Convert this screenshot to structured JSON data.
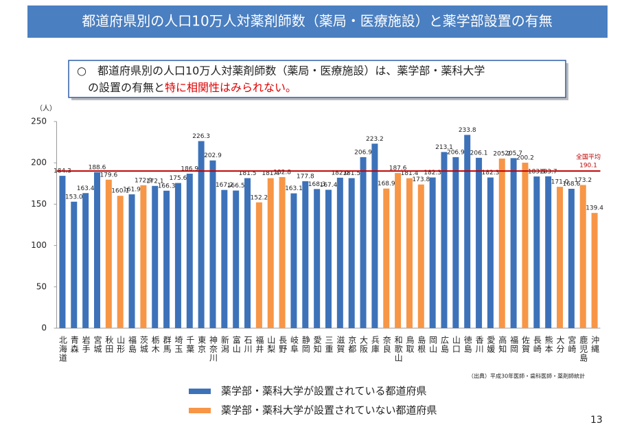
{
  "header": {
    "title": "都道府県別の人口10万人対薬剤師数（薬局・医療施設）と薬学部設置の有無"
  },
  "callout": {
    "line1": "○　都道府県別の人口10万人対薬剤師数（薬局・医療施設）は、薬学部・薬科大学",
    "line2": "の設置の有無と",
    "line2_emphasis": "特に相関性はみられない。"
  },
  "chart_data": {
    "type": "bar",
    "y_label": "（人）",
    "categories": [
      "北海道",
      "青森",
      "岩手",
      "宮城",
      "秋田",
      "山形",
      "福島",
      "茨城",
      "栃木",
      "群馬",
      "埼玉",
      "千葉",
      "東京",
      "神奈川",
      "新潟",
      "富山",
      "石川",
      "福井",
      "山梨",
      "長野",
      "岐阜",
      "静岡",
      "愛知",
      "三重",
      "滋賀",
      "京都",
      "大阪",
      "兵庫",
      "奈良",
      "和歌山",
      "鳥取",
      "島根",
      "岡山",
      "広島",
      "山口",
      "徳島",
      "香川",
      "愛媛",
      "高知",
      "福岡",
      "佐賀",
      "長崎",
      "熊本",
      "大分",
      "宮崎",
      "鹿児島",
      "沖縄"
    ],
    "series": [
      {
        "name": "薬学部・薬科大学が設置されている都道府県",
        "color": "#3d72b9",
        "values": [
          184.3,
          153,
          163.4,
          188.6,
          null,
          null,
          161.9,
          null,
          172.1,
          166.3,
          175.6,
          186.9,
          226.3,
          202.9,
          167.2,
          166.5,
          181.5,
          null,
          null,
          null,
          163.1,
          177.8,
          168.3,
          167.4,
          182,
          181.5,
          206.9,
          223.2,
          null,
          null,
          null,
          null,
          182.3,
          213.1,
          206.9,
          233.8,
          206.1,
          182.3,
          null,
          205.7,
          null,
          183.5,
          183.7,
          null,
          168.6,
          null,
          null
        ],
        "value_labels": [
          "184.3",
          "153.0",
          "163.4",
          "188.6",
          null,
          null,
          "161.9",
          null,
          "172.1",
          "166.3",
          "175.6",
          "186.9",
          "226.3",
          "202.9",
          "167.2",
          "166.5",
          "181.5",
          null,
          null,
          null,
          "163.1",
          "177.8",
          "168.3",
          "167.4",
          "182.0",
          "181.5",
          "206.9",
          "223.2",
          null,
          null,
          null,
          null,
          "182.3",
          "213.1",
          "206.9",
          "233.8",
          "206.1",
          "182.3",
          null,
          "205.7",
          null,
          "183.5",
          "183.7",
          null,
          "168.6",
          null,
          null
        ]
      },
      {
        "name": "薬学部・薬科大学が設置されていない都道府県",
        "color": "#f79646",
        "values": [
          null,
          null,
          null,
          null,
          179.6,
          160.1,
          null,
          172.9,
          null,
          null,
          null,
          null,
          null,
          null,
          null,
          null,
          null,
          152.2,
          181.4,
          182.8,
          null,
          null,
          null,
          null,
          null,
          null,
          null,
          null,
          168.9,
          187.6,
          181.4,
          173.8,
          null,
          null,
          null,
          null,
          null,
          null,
          205.2,
          null,
          200.2,
          null,
          null,
          171,
          null,
          173.2,
          139.4
        ],
        "value_labels": [
          null,
          null,
          null,
          null,
          "179.6",
          "160.1",
          null,
          "172.9",
          null,
          null,
          null,
          null,
          null,
          null,
          null,
          null,
          null,
          "152.2",
          "181.4",
          "182.8",
          null,
          null,
          null,
          null,
          null,
          null,
          null,
          null,
          "168.9",
          "187.6",
          "181.4",
          "173.8",
          null,
          null,
          null,
          null,
          null,
          null,
          "205.2",
          null,
          "200.2",
          null,
          null,
          "171.0",
          null,
          "173.2",
          "139.4"
        ]
      }
    ],
    "reference_line": {
      "label": "全国平均",
      "value": 190.1,
      "color": "#c00000"
    },
    "ylim": [
      0,
      250
    ],
    "yticks": [
      0,
      50,
      100,
      150,
      200,
      250
    ],
    "grid": false
  },
  "source": "（出典）平成30年医師・歯科医師・薬剤師統計",
  "page_number": "13"
}
